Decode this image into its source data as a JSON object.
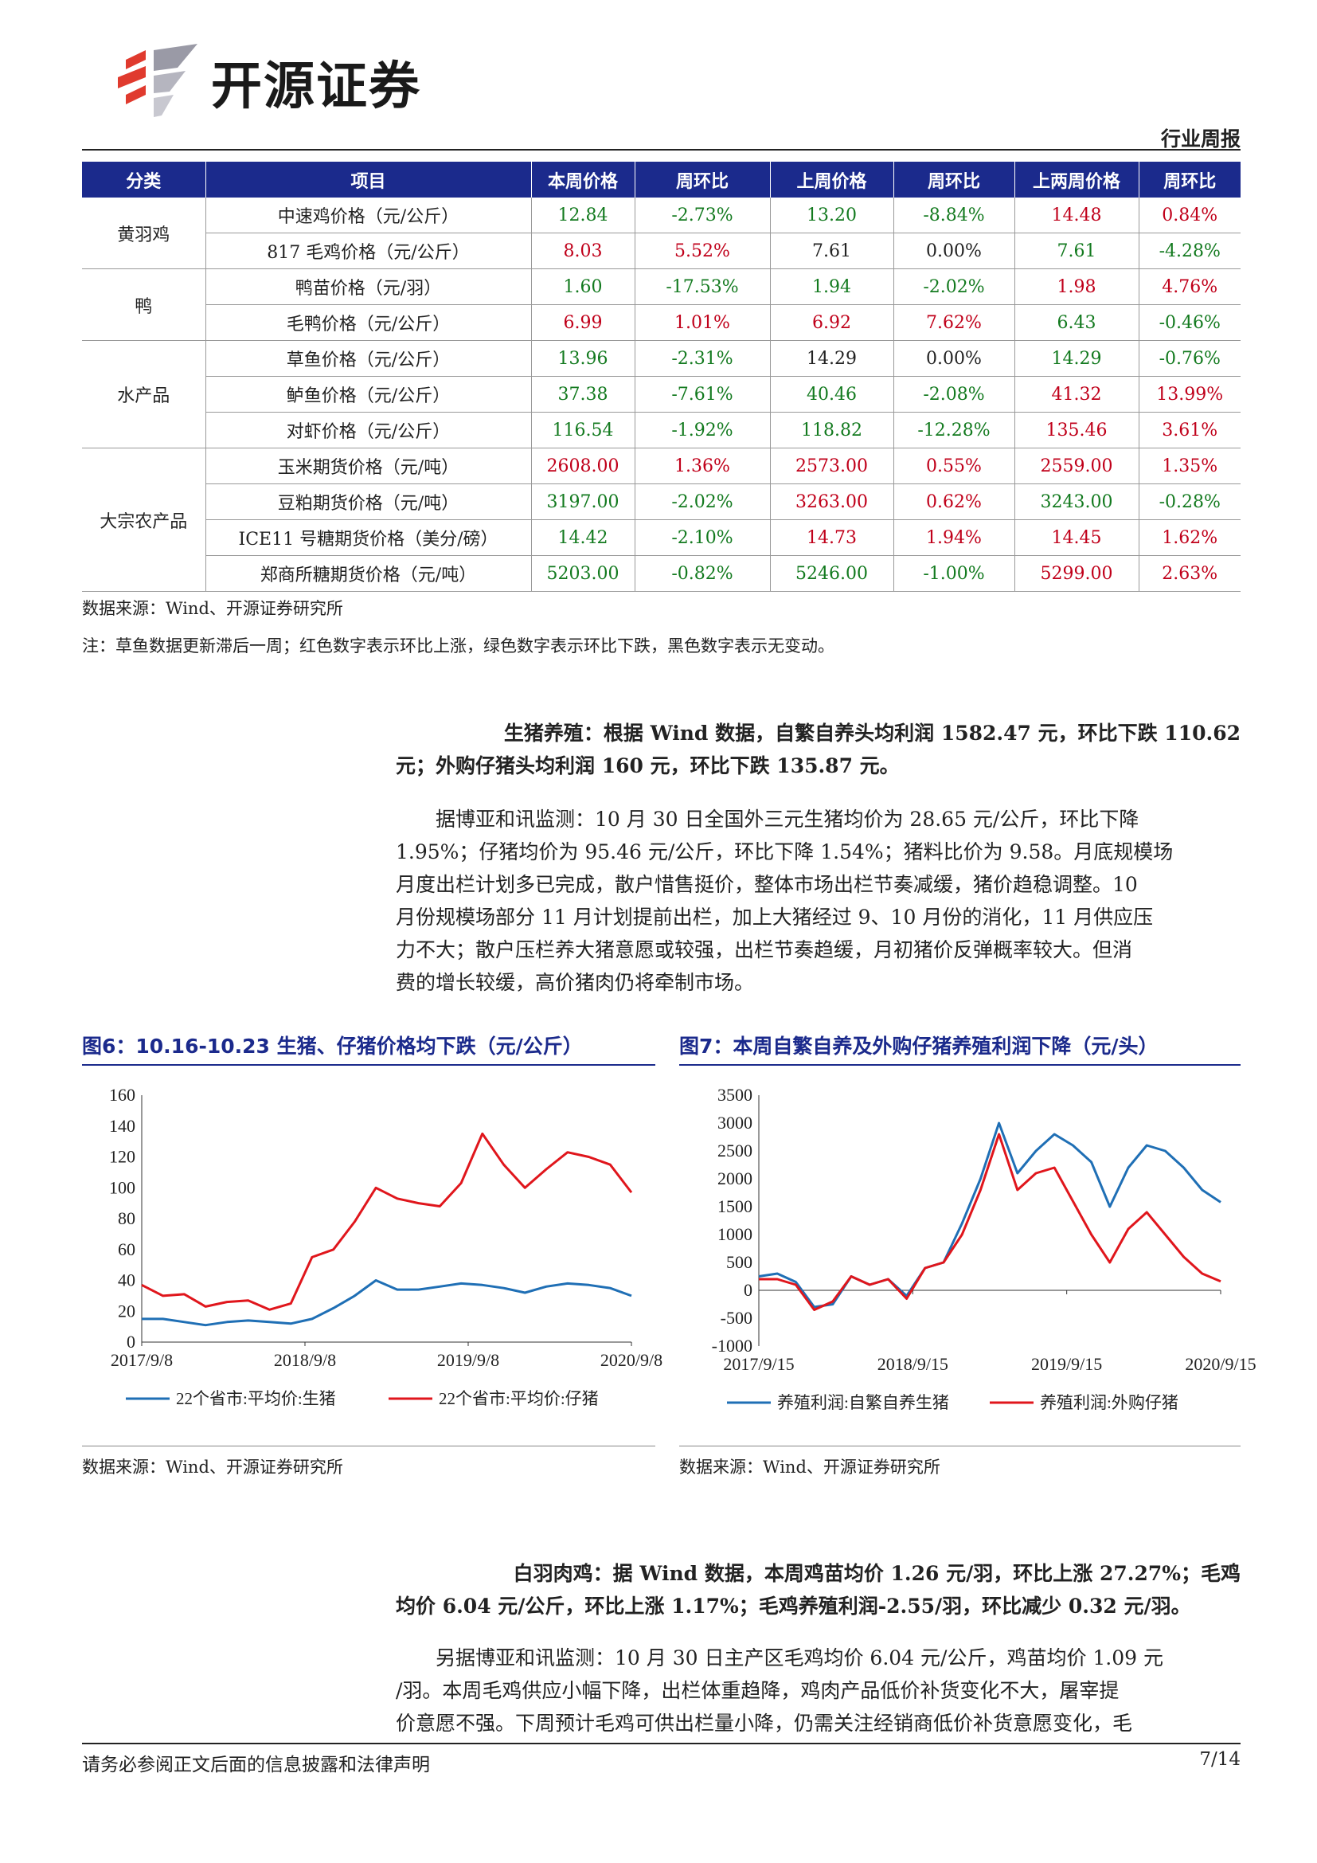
{
  "header": {
    "brand": "开源证券",
    "report_type": "行业周报"
  },
  "table": {
    "headers": [
      "分类",
      "项目",
      "本周价格",
      "周环比",
      "上周价格",
      "周环比",
      "上两周价格",
      "周环比"
    ],
    "groups": [
      {
        "category": "黄羽鸡",
        "rows": [
          {
            "item": "中速鸡价格（元/公斤）",
            "cells": [
              [
                "12.84",
                "down"
              ],
              [
                "-2.73%",
                "down"
              ],
              [
                "13.20",
                "down"
              ],
              [
                "-8.84%",
                "down"
              ],
              [
                "14.48",
                "up"
              ],
              [
                "0.84%",
                "up"
              ]
            ]
          },
          {
            "item": "817 毛鸡价格（元/公斤）",
            "cells": [
              [
                "8.03",
                "up"
              ],
              [
                "5.52%",
                "up"
              ],
              [
                "7.61",
                "flat"
              ],
              [
                "0.00%",
                "flat"
              ],
              [
                "7.61",
                "down"
              ],
              [
                "-4.28%",
                "down"
              ]
            ]
          }
        ]
      },
      {
        "category": "鸭",
        "rows": [
          {
            "item": "鸭苗价格（元/羽）",
            "cells": [
              [
                "1.60",
                "down"
              ],
              [
                "-17.53%",
                "down"
              ],
              [
                "1.94",
                "down"
              ],
              [
                "-2.02%",
                "down"
              ],
              [
                "1.98",
                "up"
              ],
              [
                "4.76%",
                "up"
              ]
            ]
          },
          {
            "item": "毛鸭价格（元/公斤）",
            "cells": [
              [
                "6.99",
                "up"
              ],
              [
                "1.01%",
                "up"
              ],
              [
                "6.92",
                "up"
              ],
              [
                "7.62%",
                "up"
              ],
              [
                "6.43",
                "down"
              ],
              [
                "-0.46%",
                "down"
              ]
            ]
          }
        ]
      },
      {
        "category": "水产品",
        "rows": [
          {
            "item": "草鱼价格（元/公斤）",
            "cells": [
              [
                "13.96",
                "down"
              ],
              [
                "-2.31%",
                "down"
              ],
              [
                "14.29",
                "flat"
              ],
              [
                "0.00%",
                "flat"
              ],
              [
                "14.29",
                "down"
              ],
              [
                "-0.76%",
                "down"
              ]
            ]
          },
          {
            "item": "鲈鱼价格（元/公斤）",
            "cells": [
              [
                "37.38",
                "down"
              ],
              [
                "-7.61%",
                "down"
              ],
              [
                "40.46",
                "down"
              ],
              [
                "-2.08%",
                "down"
              ],
              [
                "41.32",
                "up"
              ],
              [
                "13.99%",
                "up"
              ]
            ]
          },
          {
            "item": "对虾价格（元/公斤）",
            "cells": [
              [
                "116.54",
                "down"
              ],
              [
                "-1.92%",
                "down"
              ],
              [
                "118.82",
                "down"
              ],
              [
                "-12.28%",
                "down"
              ],
              [
                "135.46",
                "up"
              ],
              [
                "3.61%",
                "up"
              ]
            ]
          }
        ]
      },
      {
        "category": "大宗农产品",
        "rows": [
          {
            "item": "玉米期货价格（元/吨）",
            "cells": [
              [
                "2608.00",
                "up"
              ],
              [
                "1.36%",
                "up"
              ],
              [
                "2573.00",
                "up"
              ],
              [
                "0.55%",
                "up"
              ],
              [
                "2559.00",
                "up"
              ],
              [
                "1.35%",
                "up"
              ]
            ]
          },
          {
            "item": "豆粕期货价格（元/吨）",
            "cells": [
              [
                "3197.00",
                "down"
              ],
              [
                "-2.02%",
                "down"
              ],
              [
                "3263.00",
                "up"
              ],
              [
                "0.62%",
                "up"
              ],
              [
                "3243.00",
                "down"
              ],
              [
                "-0.28%",
                "down"
              ]
            ]
          },
          {
            "item": "ICE11 号糖期货价格（美分/磅）",
            "cells": [
              [
                "14.42",
                "down"
              ],
              [
                "-2.10%",
                "down"
              ],
              [
                "14.73",
                "up"
              ],
              [
                "1.94%",
                "up"
              ],
              [
                "14.45",
                "up"
              ],
              [
                "1.62%",
                "up"
              ]
            ]
          },
          {
            "item": "郑商所糖期货价格（元/吨）",
            "cells": [
              [
                "5203.00",
                "down"
              ],
              [
                "-0.82%",
                "down"
              ],
              [
                "5246.00",
                "down"
              ],
              [
                "-1.00%",
                "down"
              ],
              [
                "5299.00",
                "up"
              ],
              [
                "2.63%",
                "up"
              ]
            ]
          }
        ]
      }
    ],
    "source": "数据来源：Wind、开源证券研究所",
    "note": "注：草鱼数据更新滞后一周；红色数字表示环比上涨，绿色数字表示环比下跌，黑色数字表示无变动。"
  },
  "colors": {
    "up": "#c0001a",
    "down": "#137a1f",
    "flat": "#222222",
    "navy": "#1b2a8c",
    "series_blue": "#1f6fb5",
    "series_red": "#e0161c"
  },
  "pig": {
    "lead_1": "生猪养殖：根据 Wind 数据，自繁自养头均利润 1582.47 元，环比下跌 110.62",
    "lead_2": "元；外购仔猪头均利润 160 元，环比下跌 135.87 元。",
    "body_1": "据博亚和讯监测：10 月 30 日全国外三元生猪均价为 28.65 元/公斤，环比下降",
    "body_2": "1.95%；仔猪均价为 95.46 元/公斤，环比下降 1.54%；猪料比价为 9.58。月底规模场",
    "body_3": "月度出栏计划多已完成，散户惜售挺价，整体市场出栏节奏减缓，猪价趋稳调整。10",
    "body_4": "月份规模场部分 11 月计划提前出栏，加上大猪经过 9、10 月份的消化，11 月供应压",
    "body_5": "力不大；散户压栏养大猪意愿或较强，出栏节奏趋缓，月初猪价反弹概率较大。但消",
    "body_6": "费的增长较缓，高价猪肉仍将牵制市场。"
  },
  "fig6": {
    "title": "图6：10.16-10.23 生猪、仔猪价格均下跌（元/公斤）",
    "source": "数据来源：Wind、开源证券研究所"
  },
  "fig7": {
    "title": "图7：本周自繁自养及外购仔猪养殖利润下降（元/头）",
    "source": "数据来源：Wind、开源证券研究所"
  },
  "chart_data": [
    {
      "type": "line",
      "title": "",
      "ylim": [
        0,
        160
      ],
      "yticks": [
        "0",
        "20",
        "40",
        "60",
        "80",
        "100",
        "120",
        "140",
        "160"
      ],
      "xticks": [
        "2017/9/8",
        "2018/9/8",
        "2019/9/8",
        "2020/9/8"
      ],
      "x": [
        "2017-09",
        "2017-12",
        "2018-03",
        "2018-06",
        "2018-09",
        "2018-12",
        "2019-02",
        "2019-04",
        "2019-06",
        "2019-08",
        "2019-09",
        "2019-10",
        "2019-11",
        "2019-12",
        "2020-01",
        "2020-02",
        "2020-03",
        "2020-04",
        "2020-05",
        "2020-06",
        "2020-07",
        "2020-08",
        "2020-09",
        "2020-10"
      ],
      "series": [
        {
          "name": "22个省市:平均价:生猪",
          "color": "#1f6fb5",
          "values": [
            15,
            15,
            13,
            11,
            13,
            14,
            13,
            12,
            15,
            22,
            30,
            40,
            34,
            34,
            36,
            38,
            37,
            35,
            32,
            36,
            38,
            37,
            35,
            30
          ]
        },
        {
          "name": "22个省市:平均价:仔猪",
          "color": "#e0161c",
          "values": [
            37,
            30,
            31,
            23,
            26,
            27,
            21,
            25,
            55,
            60,
            78,
            100,
            93,
            90,
            88,
            103,
            135,
            115,
            100,
            112,
            123,
            120,
            115,
            97
          ]
        }
      ],
      "legend_position": "bottom"
    },
    {
      "type": "line",
      "title": "",
      "ylim": [
        -1000,
        3500
      ],
      "yticks": [
        "-1000",
        "-500",
        "0",
        "500",
        "1000",
        "1500",
        "2000",
        "2500",
        "3000",
        "3500"
      ],
      "xticks": [
        "2017/9/15",
        "2018/9/15",
        "2019/9/15",
        "2020/9/15"
      ],
      "x": [
        "2017-09",
        "2017-11",
        "2018-01",
        "2018-03",
        "2018-05",
        "2018-07",
        "2018-09",
        "2018-11",
        "2019-01",
        "2019-03",
        "2019-05",
        "2019-07",
        "2019-09",
        "2019-10",
        "2019-11",
        "2019-12",
        "2020-01",
        "2020-02",
        "2020-03",
        "2020-04",
        "2020-05",
        "2020-06",
        "2020-07",
        "2020-08",
        "2020-09",
        "2020-10"
      ],
      "series": [
        {
          "name": "养殖利润:自繁自养生猪",
          "color": "#1f6fb5",
          "values": [
            250,
            300,
            150,
            -300,
            -250,
            250,
            100,
            200,
            -100,
            400,
            500,
            1200,
            2000,
            3000,
            2100,
            2500,
            2800,
            2600,
            2300,
            1500,
            2200,
            2600,
            2500,
            2200,
            1800,
            1580
          ]
        },
        {
          "name": "养殖利润:外购仔猪",
          "color": "#e0161c",
          "values": [
            200,
            200,
            100,
            -350,
            -200,
            250,
            100,
            200,
            -150,
            400,
            500,
            1000,
            1800,
            2800,
            1800,
            2100,
            2200,
            1600,
            1000,
            500,
            1100,
            1400,
            1000,
            600,
            300,
            160
          ]
        }
      ],
      "legend_position": "bottom"
    }
  ],
  "broiler": {
    "lead_1": "白羽肉鸡：据 Wind 数据，本周鸡苗均价 1.26 元/羽，环比上涨 27.27%；毛鸡",
    "lead_2": "均价 6.04 元/公斤，环比上涨 1.17%；毛鸡养殖利润-2.55/羽，环比减少 0.32 元/羽。",
    "body_1": "另据博亚和讯监测：10 月 30 日主产区毛鸡均价 6.04 元/公斤，鸡苗均价 1.09 元",
    "body_2": "/羽。本周毛鸡供应小幅下降，出栏体重趋降，鸡肉产品低价补货变化不大，屠宰提",
    "body_3": "价意愿不强。下周预计毛鸡可供出栏量小降，仍需关注经销商低价补货意愿变化，毛"
  },
  "footer": {
    "disclaimer": "请务必参阅正文后面的信息披露和法律声明",
    "page": "7/14"
  }
}
